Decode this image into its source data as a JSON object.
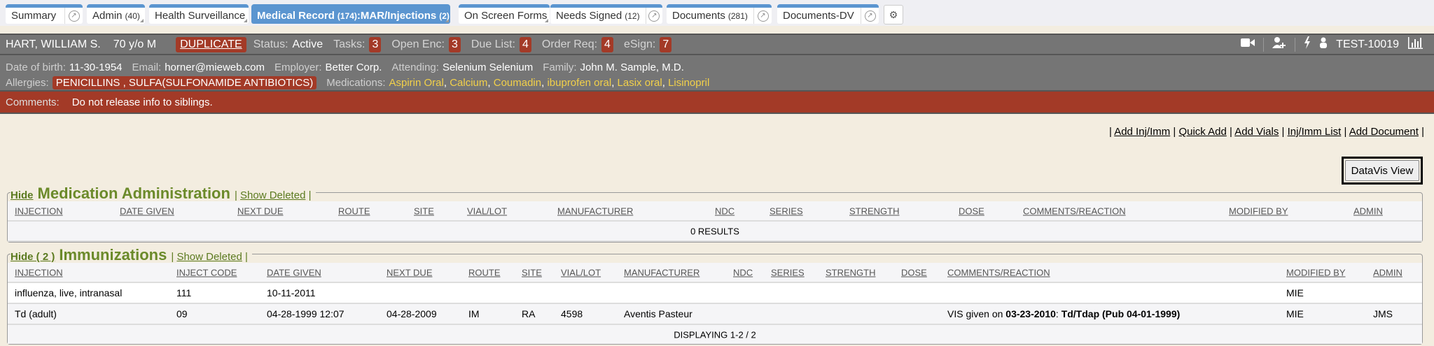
{
  "tabs": [
    {
      "label": "Summary",
      "count": "",
      "ext": true,
      "active": false
    },
    {
      "label": "Admin",
      "count": "(40)",
      "ext": false,
      "active": false
    },
    {
      "label": "Health Surveillance",
      "count": "",
      "ext": false,
      "active": false
    },
    {
      "label": "Medical Record",
      "count": "(174)",
      "suffix": ":MAR/Injections",
      "suffix_count": "(2)",
      "ext": false,
      "active": true
    },
    {
      "label": "On Screen Forms",
      "count": "",
      "ext": false,
      "active": false
    },
    {
      "label": "Needs Signed",
      "count": "(12)",
      "ext": true,
      "active": false
    },
    {
      "label": "Documents",
      "count": "(281)",
      "ext": true,
      "active": false
    },
    {
      "label": "Documents-DV",
      "count": "",
      "ext": true,
      "active": false
    }
  ],
  "patient": {
    "name": "HART, WILLIAM S.",
    "age_sex": "70 y/o M",
    "duplicate": "DUPLICATE",
    "status_label": "Status:",
    "status": "Active",
    "tasks_label": "Tasks:",
    "tasks": "3",
    "open_enc_label": "Open Enc:",
    "open_enc": "3",
    "due_list_label": "Due List:",
    "due_list": "4",
    "order_req_label": "Order Req:",
    "order_req": "4",
    "esign_label": "eSign:",
    "esign": "7",
    "id": "TEST-10019",
    "dob_label": "Date of birth:",
    "dob": "11-30-1954",
    "email_label": "Email:",
    "email": "horner@mieweb.com",
    "employer_label": "Employer:",
    "employer": "Better Corp.",
    "attending_label": "Attending:",
    "attending": "Selenium Selenium",
    "family_label": "Family:",
    "family": "John M. Sample, M.D.",
    "allergies_label": "Allergies:",
    "allergies": "PENICILLINS , SULFA(SULFONAMIDE ANTIBIOTICS)",
    "medications_label": "Medications:",
    "medications": [
      "Aspirin Oral",
      "Calcium",
      "Coumadin",
      "ibuprofen oral",
      "Lasix oral",
      "Lisinopril"
    ],
    "comments_label": "Comments:",
    "comments": "Do not release info to siblings."
  },
  "colors": {
    "accent": "#5b95d0",
    "alert": "#a33a27",
    "header_bg": "#757575",
    "med_text": "#f2d04a",
    "section_title": "#6b8a2a",
    "page_bg": "#f3ede0"
  },
  "actions": [
    "Add Inj/Imm",
    "Quick Add",
    "Add Vials",
    "Inj/Imm List",
    "Add Document"
  ],
  "datavis_button": "DataVis View",
  "med_admin": {
    "hide": "Hide",
    "title": "Medication Administration",
    "show_deleted": "Show Deleted",
    "columns": [
      "INJECTION",
      "DATE GIVEN",
      "NEXT DUE",
      "ROUTE",
      "SITE",
      "VIAL/LOT",
      "MANUFACTURER",
      "NDC",
      "SERIES",
      "STRENGTH",
      "DOSE",
      "COMMENTS/REACTION",
      "MODIFIED BY",
      "ADMIN"
    ],
    "footer": "0 RESULTS"
  },
  "immunizations": {
    "hide": "Hide ( 2 )",
    "title": "Immunizations",
    "show_deleted": "Show Deleted",
    "columns": [
      "INJECTION",
      "INJECT CODE",
      "DATE GIVEN",
      "NEXT DUE",
      "ROUTE",
      "SITE",
      "VIAL/LOT",
      "MANUFACTURER",
      "NDC",
      "SERIES",
      "STRENGTH",
      "DOSE",
      "COMMENTS/REACTION",
      "MODIFIED BY",
      "ADMIN"
    ],
    "rows": [
      [
        "influenza, live, intranasal",
        "111",
        "10-11-2011",
        "",
        "",
        "",
        "",
        "",
        "",
        "",
        "",
        "",
        "",
        "MIE",
        ""
      ],
      [
        "Td (adult)",
        "09",
        "04-28-1999 12:07",
        "04-28-2009",
        "IM",
        "RA",
        "4598",
        "Aventis Pasteur",
        "",
        "",
        "",
        "",
        "",
        "MIE",
        "JMS"
      ]
    ],
    "comment_row2": {
      "prefix": "VIS given on ",
      "date": "03-23-2010",
      "sep": ": ",
      "vis": "Td/Tdap (Pub 04-01-1999)"
    },
    "footer": "DISPLAYING 1-2 / 2"
  }
}
